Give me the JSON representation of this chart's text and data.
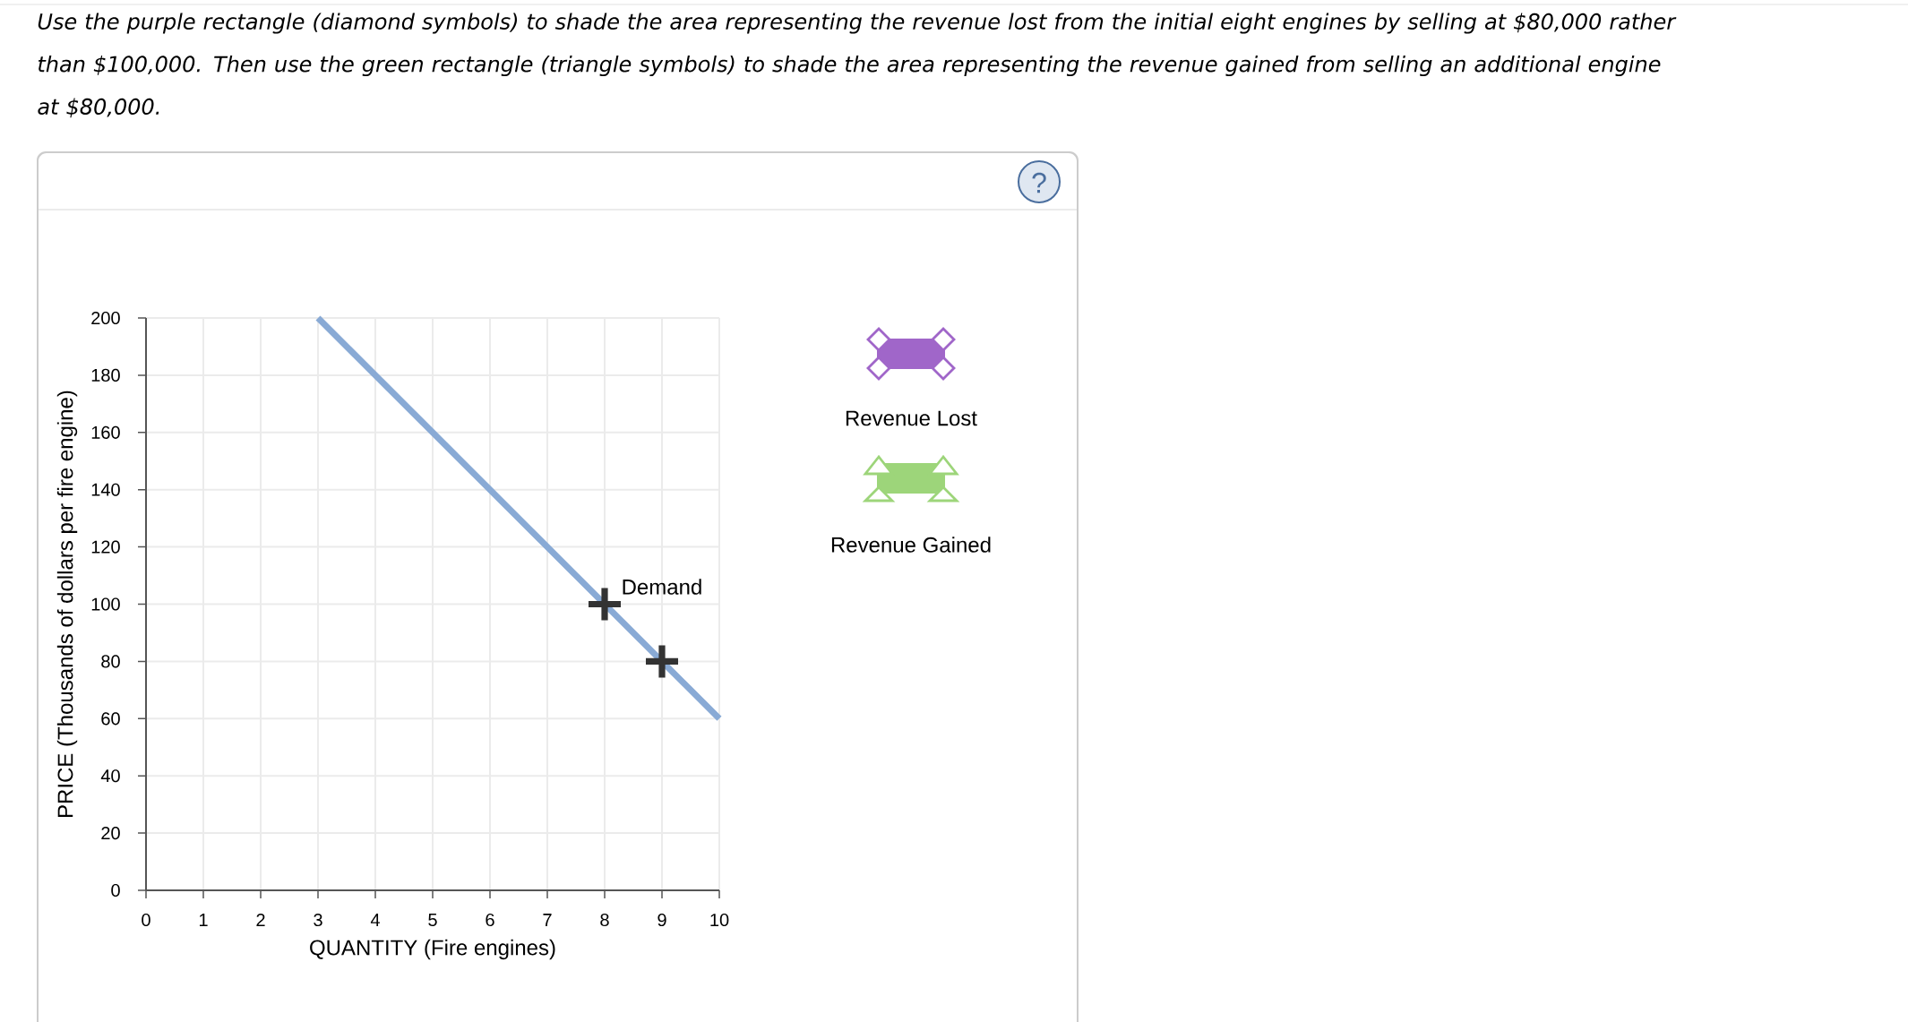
{
  "chart_data": {
    "type": "line",
    "title": "Use the purple rectangle (diamond symbols) to shade the area representing the revenue lost from the initial eight engines by selling at $80,000 rather than $100,000. Then use the green rectangle (triangle symbols) to shade the area representing the revenue gained from selling an additional engine at $80,000.",
    "xlabel": "QUANTITY (Fire engines)",
    "ylabel": "PRICE (Thousands of dollars per fire engine)",
    "xlim": [
      0,
      10
    ],
    "ylim": [
      0,
      200
    ],
    "xticks": [
      0,
      1,
      2,
      3,
      4,
      5,
      6,
      7,
      8,
      9,
      10
    ],
    "yticks": [
      0,
      20,
      40,
      60,
      80,
      100,
      120,
      140,
      160,
      180,
      200
    ],
    "grid": true,
    "series": [
      {
        "name": "Demand",
        "x": [
          3,
          10
        ],
        "values": [
          200,
          60
        ],
        "color": "#89aad5",
        "marker": "none"
      },
      {
        "type": "scatter",
        "x": [
          8,
          9
        ],
        "values": [
          100,
          80
        ],
        "color": "#333333",
        "marker": "cross"
      }
    ],
    "annotations": [
      "Revenue Lost",
      "Revenue Gained",
      "?"
    ]
  }
}
